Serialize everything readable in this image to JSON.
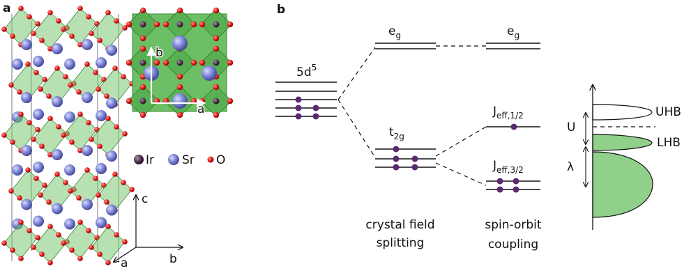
{
  "panel_a": {
    "label": "a",
    "top_view": {
      "a": "a",
      "b": "b"
    },
    "legend": [
      "Ir",
      "Sr",
      "O"
    ],
    "axes": {
      "c": "c",
      "a": "a",
      "b": "b"
    }
  },
  "panel_b": {
    "label": "b",
    "d_level": {
      "base": "5d",
      "sup": "5"
    },
    "eg_left": {
      "base": "e",
      "sub": "g"
    },
    "eg_right": {
      "base": "e",
      "sub": "g"
    },
    "t2g": {
      "base": "t",
      "sub": "2g"
    },
    "j_half": {
      "base": "J",
      "sub": "eff,1/2"
    },
    "j_three_half": {
      "base": "J",
      "sub": "eff,3/2"
    },
    "captions": [
      [
        "crystal field",
        "splitting"
      ],
      [
        "spin-orbit",
        "coupling"
      ]
    ],
    "dos": {
      "u": "U",
      "lambda": "λ",
      "uhb": "UHB",
      "lhb": "LHB"
    }
  }
}
